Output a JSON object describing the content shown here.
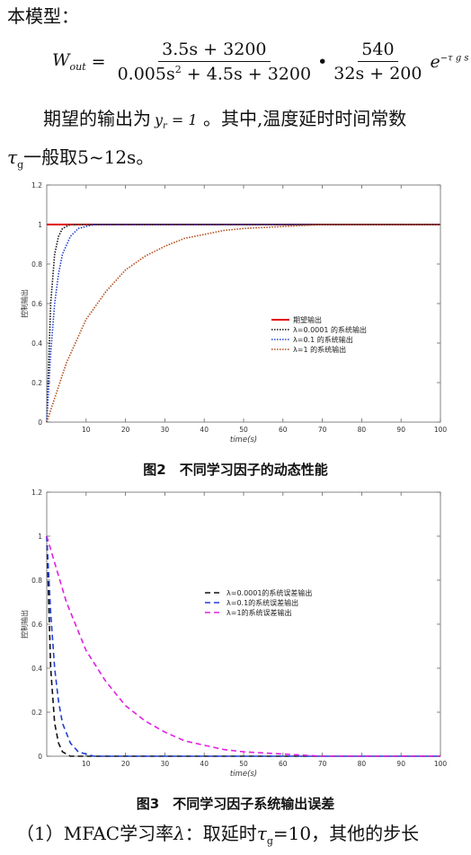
{
  "intro": "本模型：",
  "formula": {
    "lhs_main": "W",
    "lhs_sub": "out",
    "equals": "=",
    "frac1_num": "3.5s + 3200",
    "frac1_den_a": "0.005s",
    "frac1_den_sup": "2",
    "frac1_den_b": " + 4.5s + 3200",
    "dot": "•",
    "frac2_num": "540",
    "frac2_den": "32s + 200",
    "exp_base": "e",
    "exp_sup": "−τ g s"
  },
  "para1": {
    "prefix": "期望的输出为",
    "math_y": "y",
    "math_sub": "r",
    "math_eq": " = 1",
    "suffix": " 。其中,温度延时时间常数"
  },
  "para2": {
    "tau": "τ",
    "tau_sub": "g",
    "text": "一般取5~12s。"
  },
  "fig2": {
    "caption": "图2　不同学习因子的动态性能"
  },
  "fig3": {
    "caption": "图3　不同学习因子系统输出误差"
  },
  "footer": {
    "text1": "（1）MFAC学习率",
    "lambda": "λ",
    "text2": "：取延时",
    "tau": "τ",
    "tau_sub": "g",
    "text3": "=10，其他的步长"
  },
  "chart_data": [
    {
      "type": "line",
      "title": "",
      "xlabel": "time(s)",
      "ylabel": "控制输出",
      "xlim": [
        0,
        100
      ],
      "ylim": [
        0,
        1.2
      ],
      "x_ticks": [
        "10",
        "20",
        "30",
        "40",
        "50",
        "60",
        "70",
        "80",
        "90",
        "100"
      ],
      "y_ticks": [
        "0",
        "0.2",
        "0.4",
        "0.6",
        "0.8",
        "1",
        "1.2"
      ],
      "legend_position": "center-right",
      "series": [
        {
          "name": "期望输出",
          "color": "#e00000",
          "style": "solid",
          "x": [
            0,
            100
          ],
          "y": [
            1,
            1
          ]
        },
        {
          "name": "λ=0.0001 的系统输出",
          "color": "#111111",
          "style": "dotted",
          "x": [
            0,
            1,
            2,
            3,
            4,
            5,
            6,
            8,
            10,
            100
          ],
          "y": [
            0,
            0.6,
            0.85,
            0.94,
            0.98,
            0.99,
            1.0,
            1.0,
            1.0,
            1.0
          ]
        },
        {
          "name": "λ=0.1 的系统输出",
          "color": "#1f3fd6",
          "style": "dotted",
          "x": [
            0,
            1,
            2,
            3,
            4,
            6,
            8,
            10,
            12,
            15,
            100
          ],
          "y": [
            0,
            0.35,
            0.6,
            0.75,
            0.85,
            0.94,
            0.98,
            0.99,
            1.0,
            1.0,
            1.0
          ]
        },
        {
          "name": "λ=1 的系统输出",
          "color": "#b34d1a",
          "style": "dotted",
          "x": [
            0,
            5,
            10,
            15,
            20,
            25,
            30,
            35,
            40,
            45,
            50,
            60,
            70,
            80,
            100
          ],
          "y": [
            0,
            0.3,
            0.52,
            0.66,
            0.77,
            0.84,
            0.89,
            0.93,
            0.95,
            0.97,
            0.98,
            0.99,
            1.0,
            1.0,
            1.0
          ]
        }
      ]
    },
    {
      "type": "line",
      "title": "",
      "xlabel": "time(s)",
      "ylabel": "控制输出",
      "xlim": [
        0,
        100
      ],
      "ylim": [
        0,
        1.2
      ],
      "x_ticks": [
        "10",
        "20",
        "30",
        "40",
        "50",
        "60",
        "70",
        "80",
        "90",
        "100"
      ],
      "y_ticks": [
        "0",
        "0.2",
        "0.4",
        "0.6",
        "0.8",
        "1",
        "1.2"
      ],
      "legend_position": "center-right",
      "series": [
        {
          "name": "λ=0.0001的系统误差输出",
          "color": "#111111",
          "style": "dashed",
          "x": [
            0,
            1,
            2,
            3,
            4,
            5,
            6,
            8,
            10,
            100
          ],
          "y": [
            1,
            0.4,
            0.15,
            0.06,
            0.02,
            0.01,
            0.0,
            0.0,
            0.0,
            0.0
          ]
        },
        {
          "name": "λ=0.1的系统误差输出",
          "color": "#1f3fd6",
          "style": "dashed",
          "x": [
            0,
            1,
            2,
            3,
            4,
            6,
            8,
            10,
            12,
            15,
            100
          ],
          "y": [
            1,
            0.65,
            0.4,
            0.25,
            0.15,
            0.06,
            0.02,
            0.01,
            0.0,
            0.0,
            0.0
          ]
        },
        {
          "name": "λ=1的系统误差输出",
          "color": "#e020e0",
          "style": "dashed",
          "x": [
            0,
            5,
            10,
            15,
            20,
            25,
            30,
            35,
            40,
            45,
            50,
            60,
            70,
            80,
            100
          ],
          "y": [
            1,
            0.7,
            0.48,
            0.34,
            0.23,
            0.16,
            0.11,
            0.07,
            0.05,
            0.03,
            0.02,
            0.01,
            0.0,
            0.0,
            0.0
          ]
        }
      ]
    }
  ]
}
